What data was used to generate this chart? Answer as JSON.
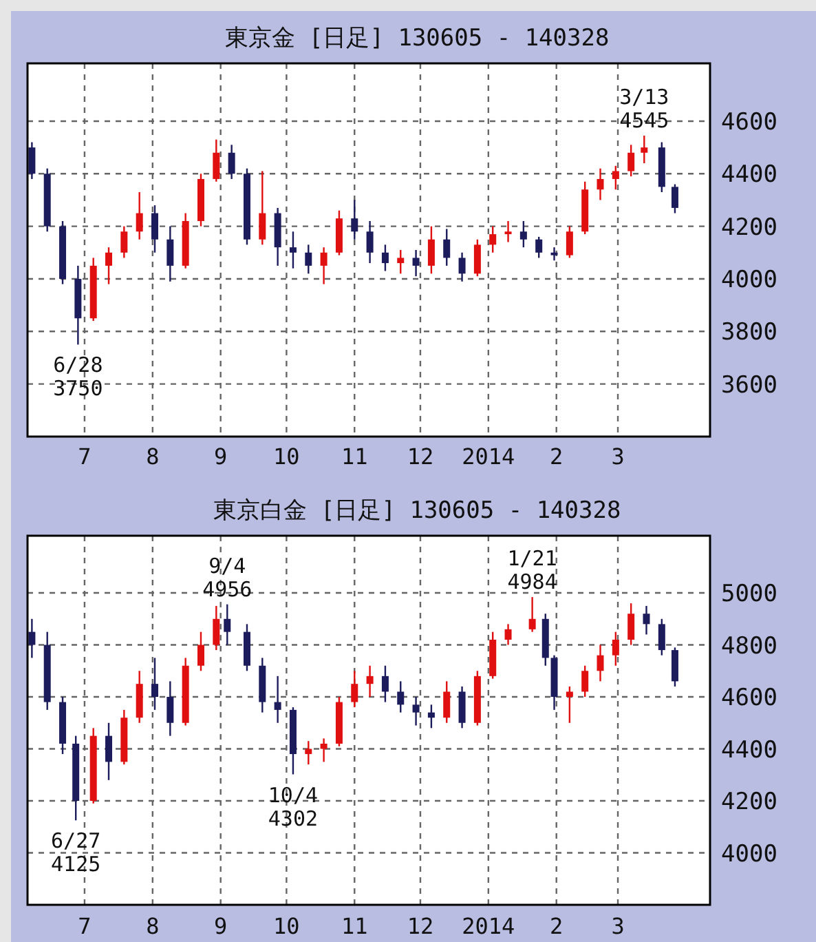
{
  "chart_data": [
    {
      "type": "candlestick",
      "title": "東京金 [日足] 130605 - 140328",
      "x": [
        "2013-06-07",
        "2013-06-14",
        "2013-06-21",
        "2013-06-28",
        "2013-07-05",
        "2013-07-12",
        "2013-07-19",
        "2013-07-26",
        "2013-08-02",
        "2013-08-09",
        "2013-08-16",
        "2013-08-23",
        "2013-08-30",
        "2013-09-06",
        "2013-09-13",
        "2013-09-20",
        "2013-09-27",
        "2013-10-04",
        "2013-10-11",
        "2013-10-18",
        "2013-10-25",
        "2013-11-01",
        "2013-11-08",
        "2013-11-15",
        "2013-11-22",
        "2013-11-29",
        "2013-12-06",
        "2013-12-13",
        "2013-12-20",
        "2013-12-27",
        "2014-01-03",
        "2014-01-10",
        "2014-01-17",
        "2014-01-24",
        "2014-01-31",
        "2014-02-07",
        "2014-02-14",
        "2014-02-21",
        "2014-02-28",
        "2014-03-07",
        "2014-03-13",
        "2014-03-21",
        "2014-03-27"
      ],
      "ohlc": [
        [
          4500,
          4520,
          4380,
          4400
        ],
        [
          4400,
          4420,
          4180,
          4200
        ],
        [
          4200,
          4220,
          3980,
          4000
        ],
        [
          4000,
          4050,
          3750,
          3850
        ],
        [
          3850,
          4080,
          3840,
          4050
        ],
        [
          4050,
          4120,
          3980,
          4100
        ],
        [
          4100,
          4200,
          4080,
          4180
        ],
        [
          4180,
          4330,
          4150,
          4250
        ],
        [
          4250,
          4280,
          4100,
          4150
        ],
        [
          4150,
          4200,
          3990,
          4050
        ],
        [
          4050,
          4250,
          4040,
          4220
        ],
        [
          4220,
          4400,
          4200,
          4380
        ],
        [
          4380,
          4530,
          4370,
          4480
        ],
        [
          4480,
          4510,
          4380,
          4400
        ],
        [
          4400,
          4420,
          4130,
          4150
        ],
        [
          4150,
          4410,
          4130,
          4250
        ],
        [
          4250,
          4270,
          4050,
          4120
        ],
        [
          4120,
          4180,
          4040,
          4100
        ],
        [
          4100,
          4130,
          4020,
          4050
        ],
        [
          4050,
          4120,
          3980,
          4100
        ],
        [
          4100,
          4260,
          4090,
          4230
        ],
        [
          4230,
          4300,
          4150,
          4180
        ],
        [
          4180,
          4220,
          4060,
          4100
        ],
        [
          4100,
          4130,
          4030,
          4060
        ],
        [
          4060,
          4110,
          4020,
          4080
        ],
        [
          4080,
          4110,
          4010,
          4050
        ],
        [
          4050,
          4200,
          4020,
          4150
        ],
        [
          4150,
          4190,
          4050,
          4080
        ],
        [
          4080,
          4100,
          3990,
          4020
        ],
        [
          4020,
          4150,
          4010,
          4130
        ],
        [
          4130,
          4200,
          4100,
          4170
        ],
        [
          4170,
          4220,
          4140,
          4180
        ],
        [
          4180,
          4220,
          4120,
          4150
        ],
        [
          4150,
          4160,
          4080,
          4100
        ],
        [
          4100,
          4120,
          4070,
          4090
        ],
        [
          4090,
          4200,
          4080,
          4180
        ],
        [
          4180,
          4370,
          4170,
          4340
        ],
        [
          4340,
          4420,
          4300,
          4380
        ],
        [
          4380,
          4430,
          4340,
          4410
        ],
        [
          4410,
          4510,
          4390,
          4480
        ],
        [
          4480,
          4545,
          4440,
          4500
        ],
        [
          4500,
          4520,
          4330,
          4350
        ],
        [
          4350,
          4360,
          4250,
          4270
        ]
      ],
      "colors": [
        "#1c1c5c",
        "#1c1c5c",
        "#1c1c5c",
        "#1c1c5c",
        "#e01010",
        "#e01010",
        "#e01010",
        "#e01010",
        "#1c1c5c",
        "#1c1c5c",
        "#e01010",
        "#e01010",
        "#e01010",
        "#1c1c5c",
        "#1c1c5c",
        "#e01010",
        "#1c1c5c",
        "#1c1c5c",
        "#1c1c5c",
        "#e01010",
        "#e01010",
        "#1c1c5c",
        "#1c1c5c",
        "#1c1c5c",
        "#e01010",
        "#1c1c5c",
        "#e01010",
        "#1c1c5c",
        "#1c1c5c",
        "#e01010",
        "#e01010",
        "#e01010",
        "#1c1c5c",
        "#1c1c5c",
        "#1c1c5c",
        "#e01010",
        "#e01010",
        "#e01010",
        "#e01010",
        "#e01010",
        "#e01010",
        "#1c1c5c",
        "#1c1c5c"
      ],
      "xlim": [
        "2013-06-05",
        "2014-04-12"
      ],
      "xticks": [
        {
          "value": "2013-07-01",
          "label": "7"
        },
        {
          "value": "2013-08-01",
          "label": "8"
        },
        {
          "value": "2013-09-01",
          "label": "9"
        },
        {
          "value": "2013-10-01",
          "label": "10"
        },
        {
          "value": "2013-11-01",
          "label": "11"
        },
        {
          "value": "2013-12-01",
          "label": "12"
        },
        {
          "value": "2014-01-01",
          "label": "2014"
        },
        {
          "value": "2014-02-01",
          "label": "2"
        },
        {
          "value": "2014-03-01",
          "label": "3"
        }
      ],
      "ylim": [
        3400,
        4820
      ],
      "yticks": [
        3600,
        3800,
        4000,
        4200,
        4400,
        4600
      ],
      "grid": true,
      "annotations": [
        {
          "text": "6/28\n3750",
          "x": "2013-06-28",
          "y": 3750
        },
        {
          "text": "3/13\n4545",
          "x": "2014-03-13",
          "y": 4545
        }
      ]
    },
    {
      "type": "candlestick",
      "title": "東京白金 [日足] 130605 - 140328",
      "x": [
        "2013-06-07",
        "2013-06-14",
        "2013-06-21",
        "2013-06-27",
        "2013-07-05",
        "2013-07-12",
        "2013-07-19",
        "2013-07-26",
        "2013-08-02",
        "2013-08-09",
        "2013-08-16",
        "2013-08-23",
        "2013-08-30",
        "2013-09-04",
        "2013-09-13",
        "2013-09-20",
        "2013-09-27",
        "2013-10-04",
        "2013-10-11",
        "2013-10-18",
        "2013-10-25",
        "2013-11-01",
        "2013-11-08",
        "2013-11-15",
        "2013-11-22",
        "2013-11-29",
        "2013-12-06",
        "2013-12-13",
        "2013-12-20",
        "2013-12-27",
        "2014-01-03",
        "2014-01-10",
        "2014-01-21",
        "2014-01-27",
        "2014-01-31",
        "2014-02-07",
        "2014-02-14",
        "2014-02-21",
        "2014-02-28",
        "2014-03-07",
        "2014-03-14",
        "2014-03-21",
        "2014-03-27"
      ],
      "ohlc": [
        [
          4850,
          4900,
          4750,
          4800
        ],
        [
          4800,
          4850,
          4550,
          4580
        ],
        [
          4580,
          4600,
          4380,
          4420
        ],
        [
          4420,
          4450,
          4125,
          4200
        ],
        [
          4200,
          4480,
          4190,
          4450
        ],
        [
          4450,
          4500,
          4280,
          4350
        ],
        [
          4350,
          4550,
          4340,
          4520
        ],
        [
          4520,
          4700,
          4500,
          4650
        ],
        [
          4650,
          4750,
          4550,
          4600
        ],
        [
          4600,
          4660,
          4450,
          4500
        ],
        [
          4500,
          4750,
          4490,
          4720
        ],
        [
          4720,
          4850,
          4700,
          4800
        ],
        [
          4800,
          4950,
          4780,
          4900
        ],
        [
          4900,
          4956,
          4800,
          4850
        ],
        [
          4850,
          4880,
          4700,
          4720
        ],
        [
          4720,
          4750,
          4540,
          4580
        ],
        [
          4580,
          4680,
          4500,
          4550
        ],
        [
          4550,
          4560,
          4302,
          4380
        ],
        [
          4380,
          4430,
          4340,
          4400
        ],
        [
          4400,
          4440,
          4350,
          4420
        ],
        [
          4420,
          4600,
          4410,
          4580
        ],
        [
          4580,
          4700,
          4560,
          4650
        ],
        [
          4650,
          4720,
          4600,
          4680
        ],
        [
          4680,
          4720,
          4580,
          4620
        ],
        [
          4620,
          4660,
          4540,
          4570
        ],
        [
          4570,
          4600,
          4490,
          4540
        ],
        [
          4540,
          4570,
          4480,
          4520
        ],
        [
          4520,
          4660,
          4500,
          4620
        ],
        [
          4620,
          4640,
          4480,
          4500
        ],
        [
          4500,
          4700,
          4490,
          4680
        ],
        [
          4680,
          4850,
          4670,
          4820
        ],
        [
          4820,
          4880,
          4800,
          4860
        ],
        [
          4860,
          4984,
          4850,
          4900
        ],
        [
          4900,
          4920,
          4720,
          4750
        ],
        [
          4750,
          4760,
          4550,
          4600
        ],
        [
          4600,
          4640,
          4500,
          4620
        ],
        [
          4620,
          4720,
          4600,
          4700
        ],
        [
          4700,
          4800,
          4660,
          4760
        ],
        [
          4760,
          4850,
          4720,
          4820
        ],
        [
          4820,
          4960,
          4800,
          4920
        ],
        [
          4920,
          4950,
          4840,
          4880
        ],
        [
          4880,
          4900,
          4760,
          4780
        ],
        [
          4780,
          4790,
          4640,
          4660
        ]
      ],
      "colors": [
        "#1c1c5c",
        "#1c1c5c",
        "#1c1c5c",
        "#1c1c5c",
        "#e01010",
        "#1c1c5c",
        "#e01010",
        "#e01010",
        "#1c1c5c",
        "#1c1c5c",
        "#e01010",
        "#e01010",
        "#e01010",
        "#1c1c5c",
        "#1c1c5c",
        "#1c1c5c",
        "#1c1c5c",
        "#1c1c5c",
        "#e01010",
        "#e01010",
        "#e01010",
        "#e01010",
        "#e01010",
        "#1c1c5c",
        "#1c1c5c",
        "#1c1c5c",
        "#1c1c5c",
        "#e01010",
        "#1c1c5c",
        "#e01010",
        "#e01010",
        "#e01010",
        "#e01010",
        "#1c1c5c",
        "#1c1c5c",
        "#e01010",
        "#e01010",
        "#e01010",
        "#e01010",
        "#e01010",
        "#1c1c5c",
        "#1c1c5c",
        "#1c1c5c"
      ],
      "xlim": [
        "2013-06-05",
        "2014-04-12"
      ],
      "xticks": [
        {
          "value": "2013-07-01",
          "label": "7"
        },
        {
          "value": "2013-08-01",
          "label": "8"
        },
        {
          "value": "2013-09-01",
          "label": "9"
        },
        {
          "value": "2013-10-01",
          "label": "10"
        },
        {
          "value": "2013-11-01",
          "label": "11"
        },
        {
          "value": "2013-12-01",
          "label": "12"
        },
        {
          "value": "2014-01-01",
          "label": "2014"
        },
        {
          "value": "2014-02-01",
          "label": "2"
        },
        {
          "value": "2014-03-01",
          "label": "3"
        }
      ],
      "ylim": [
        3800,
        5220
      ],
      "yticks": [
        4000,
        4200,
        4400,
        4600,
        4800,
        5000
      ],
      "grid": true,
      "annotations": [
        {
          "text": "6/27\n4125",
          "x": "2013-06-27",
          "y": 4125
        },
        {
          "text": "9/4\n4956",
          "x": "2013-09-04",
          "y": 4956
        },
        {
          "text": "10/4\n4302",
          "x": "2013-10-04",
          "y": 4302
        },
        {
          "text": "1/21\n4984",
          "x": "2014-01-21",
          "y": 4984
        }
      ]
    }
  ]
}
